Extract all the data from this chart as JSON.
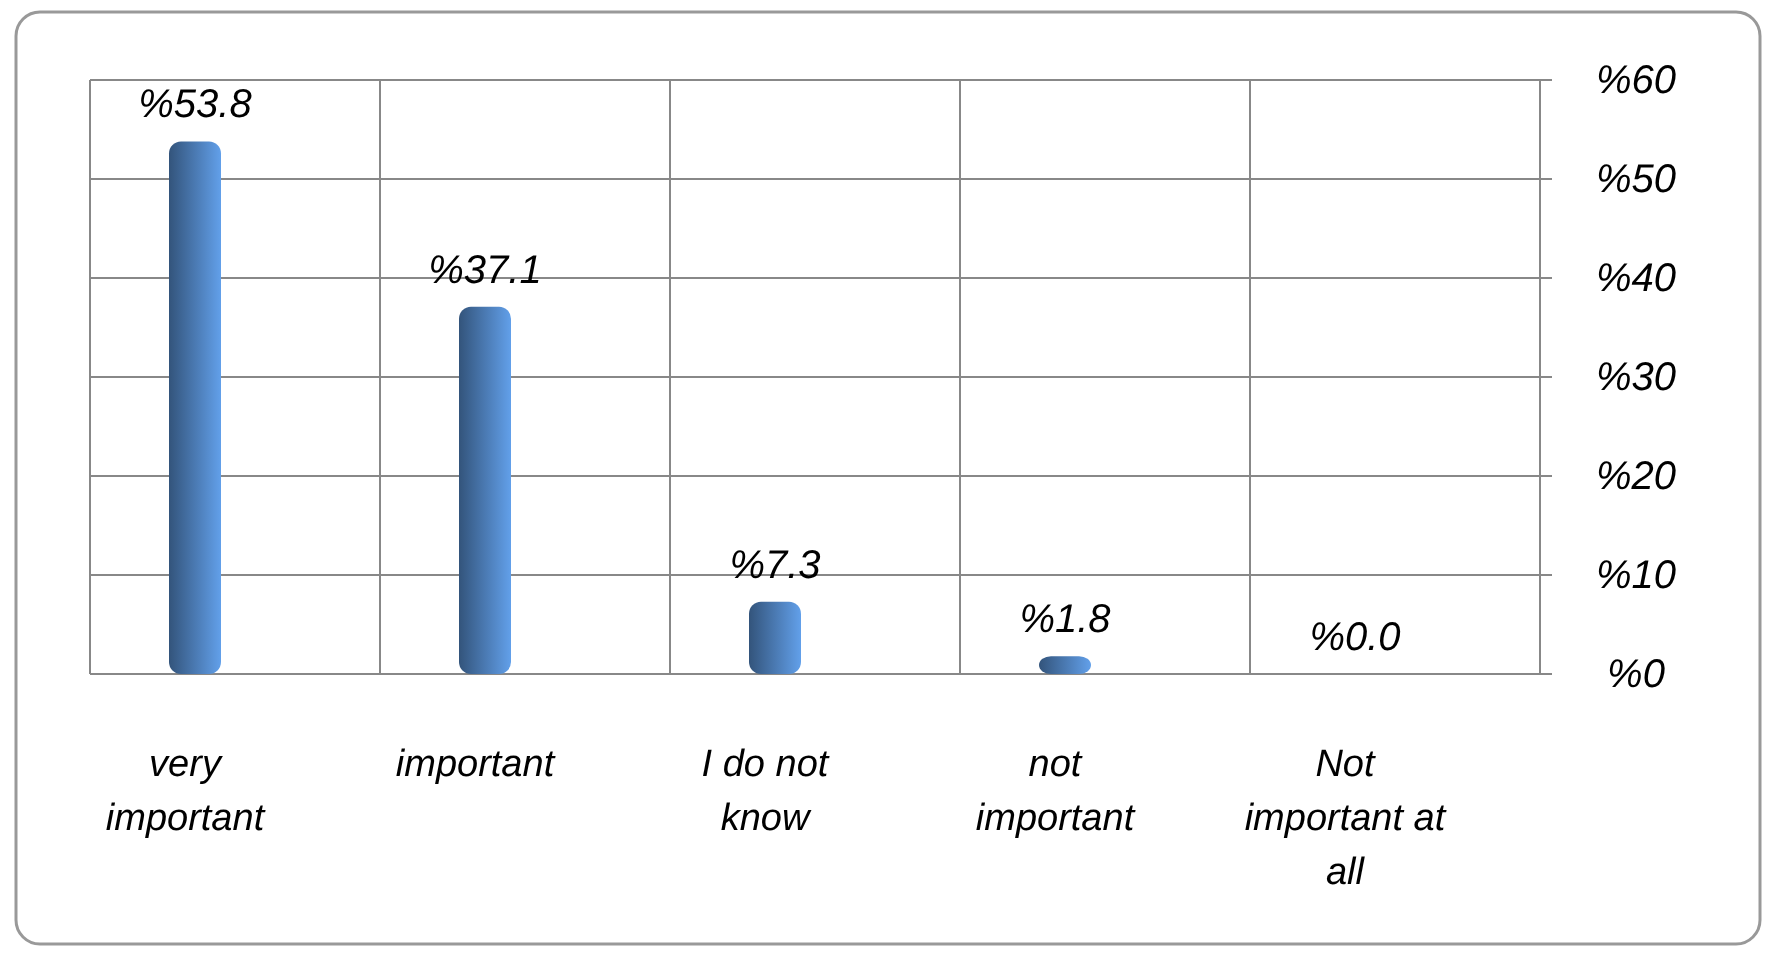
{
  "chart_data": {
    "type": "bar",
    "categories": [
      "very important",
      "important",
      "I do not know",
      "not important",
      "Not important at all"
    ],
    "values": [
      53.8,
      37.1,
      7.3,
      1.8,
      0.0
    ],
    "color": "#4f81bd",
    "value_labels": [
      "%53.8",
      "%37.1",
      "%7.3",
      "%1.8",
      "%0.0"
    ],
    "ylim": [
      0,
      60
    ],
    "yticks": [
      {
        "value": 0,
        "label": "%0"
      },
      {
        "value": 10,
        "label": "%10"
      },
      {
        "value": 20,
        "label": "%20"
      },
      {
        "value": 30,
        "label": "%30"
      },
      {
        "value": 40,
        "label": "%40"
      },
      {
        "value": 50,
        "label": "%50"
      },
      {
        "value": 60,
        "label": "%60"
      }
    ],
    "grid": true
  }
}
